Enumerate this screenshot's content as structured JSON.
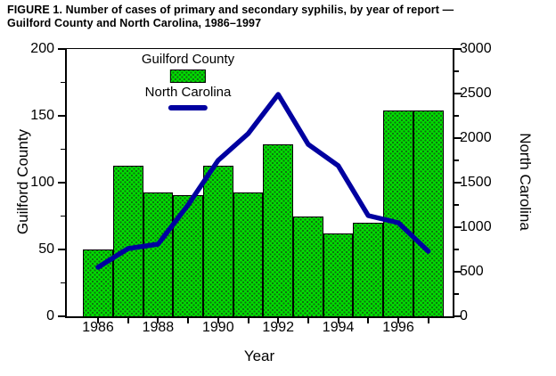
{
  "title": {
    "line1": "FIGURE 1. Number of cases of primary and secondary syphilis, by year of report —",
    "line2": "Guilford County and North Carolina, 1986–1997"
  },
  "chart_data": {
    "type": "bar",
    "subtype": "bar-plus-line-dual-axis",
    "categories": [
      1986,
      1987,
      1988,
      1989,
      1990,
      1991,
      1992,
      1993,
      1994,
      1995,
      1996,
      1997
    ],
    "series": [
      {
        "name": "Guilford County",
        "type": "bar",
        "axis": "left",
        "color": "#00dc00",
        "values": [
          50,
          113,
          93,
          91,
          113,
          93,
          129,
          75,
          62,
          70,
          154,
          154
        ]
      },
      {
        "name": "North Carolina",
        "type": "line",
        "axis": "right",
        "color": "#0000a0",
        "values": [
          550,
          760,
          810,
          1250,
          1750,
          2050,
          2490,
          1930,
          1690,
          1130,
          1050,
          730
        ]
      }
    ],
    "left_axis": {
      "label": "Guilford County",
      "min": 0,
      "max": 200,
      "major_tick_step": 50,
      "minor_tick_step": 25,
      "tick_labels": [
        "0",
        "50",
        "100",
        "150",
        "200"
      ]
    },
    "right_axis": {
      "label": "North Carolina",
      "min": 0,
      "max": 3000,
      "major_tick_step": 500,
      "minor_tick_step": 250,
      "tick_labels": [
        "0",
        "500",
        "1000",
        "1500",
        "2000",
        "2500",
        "3000"
      ]
    },
    "x_axis": {
      "label": "Year",
      "labeled_years": [
        1986,
        1988,
        1990,
        1992,
        1994,
        1996
      ]
    },
    "legend_position": "top-center-inside",
    "grid": false
  }
}
